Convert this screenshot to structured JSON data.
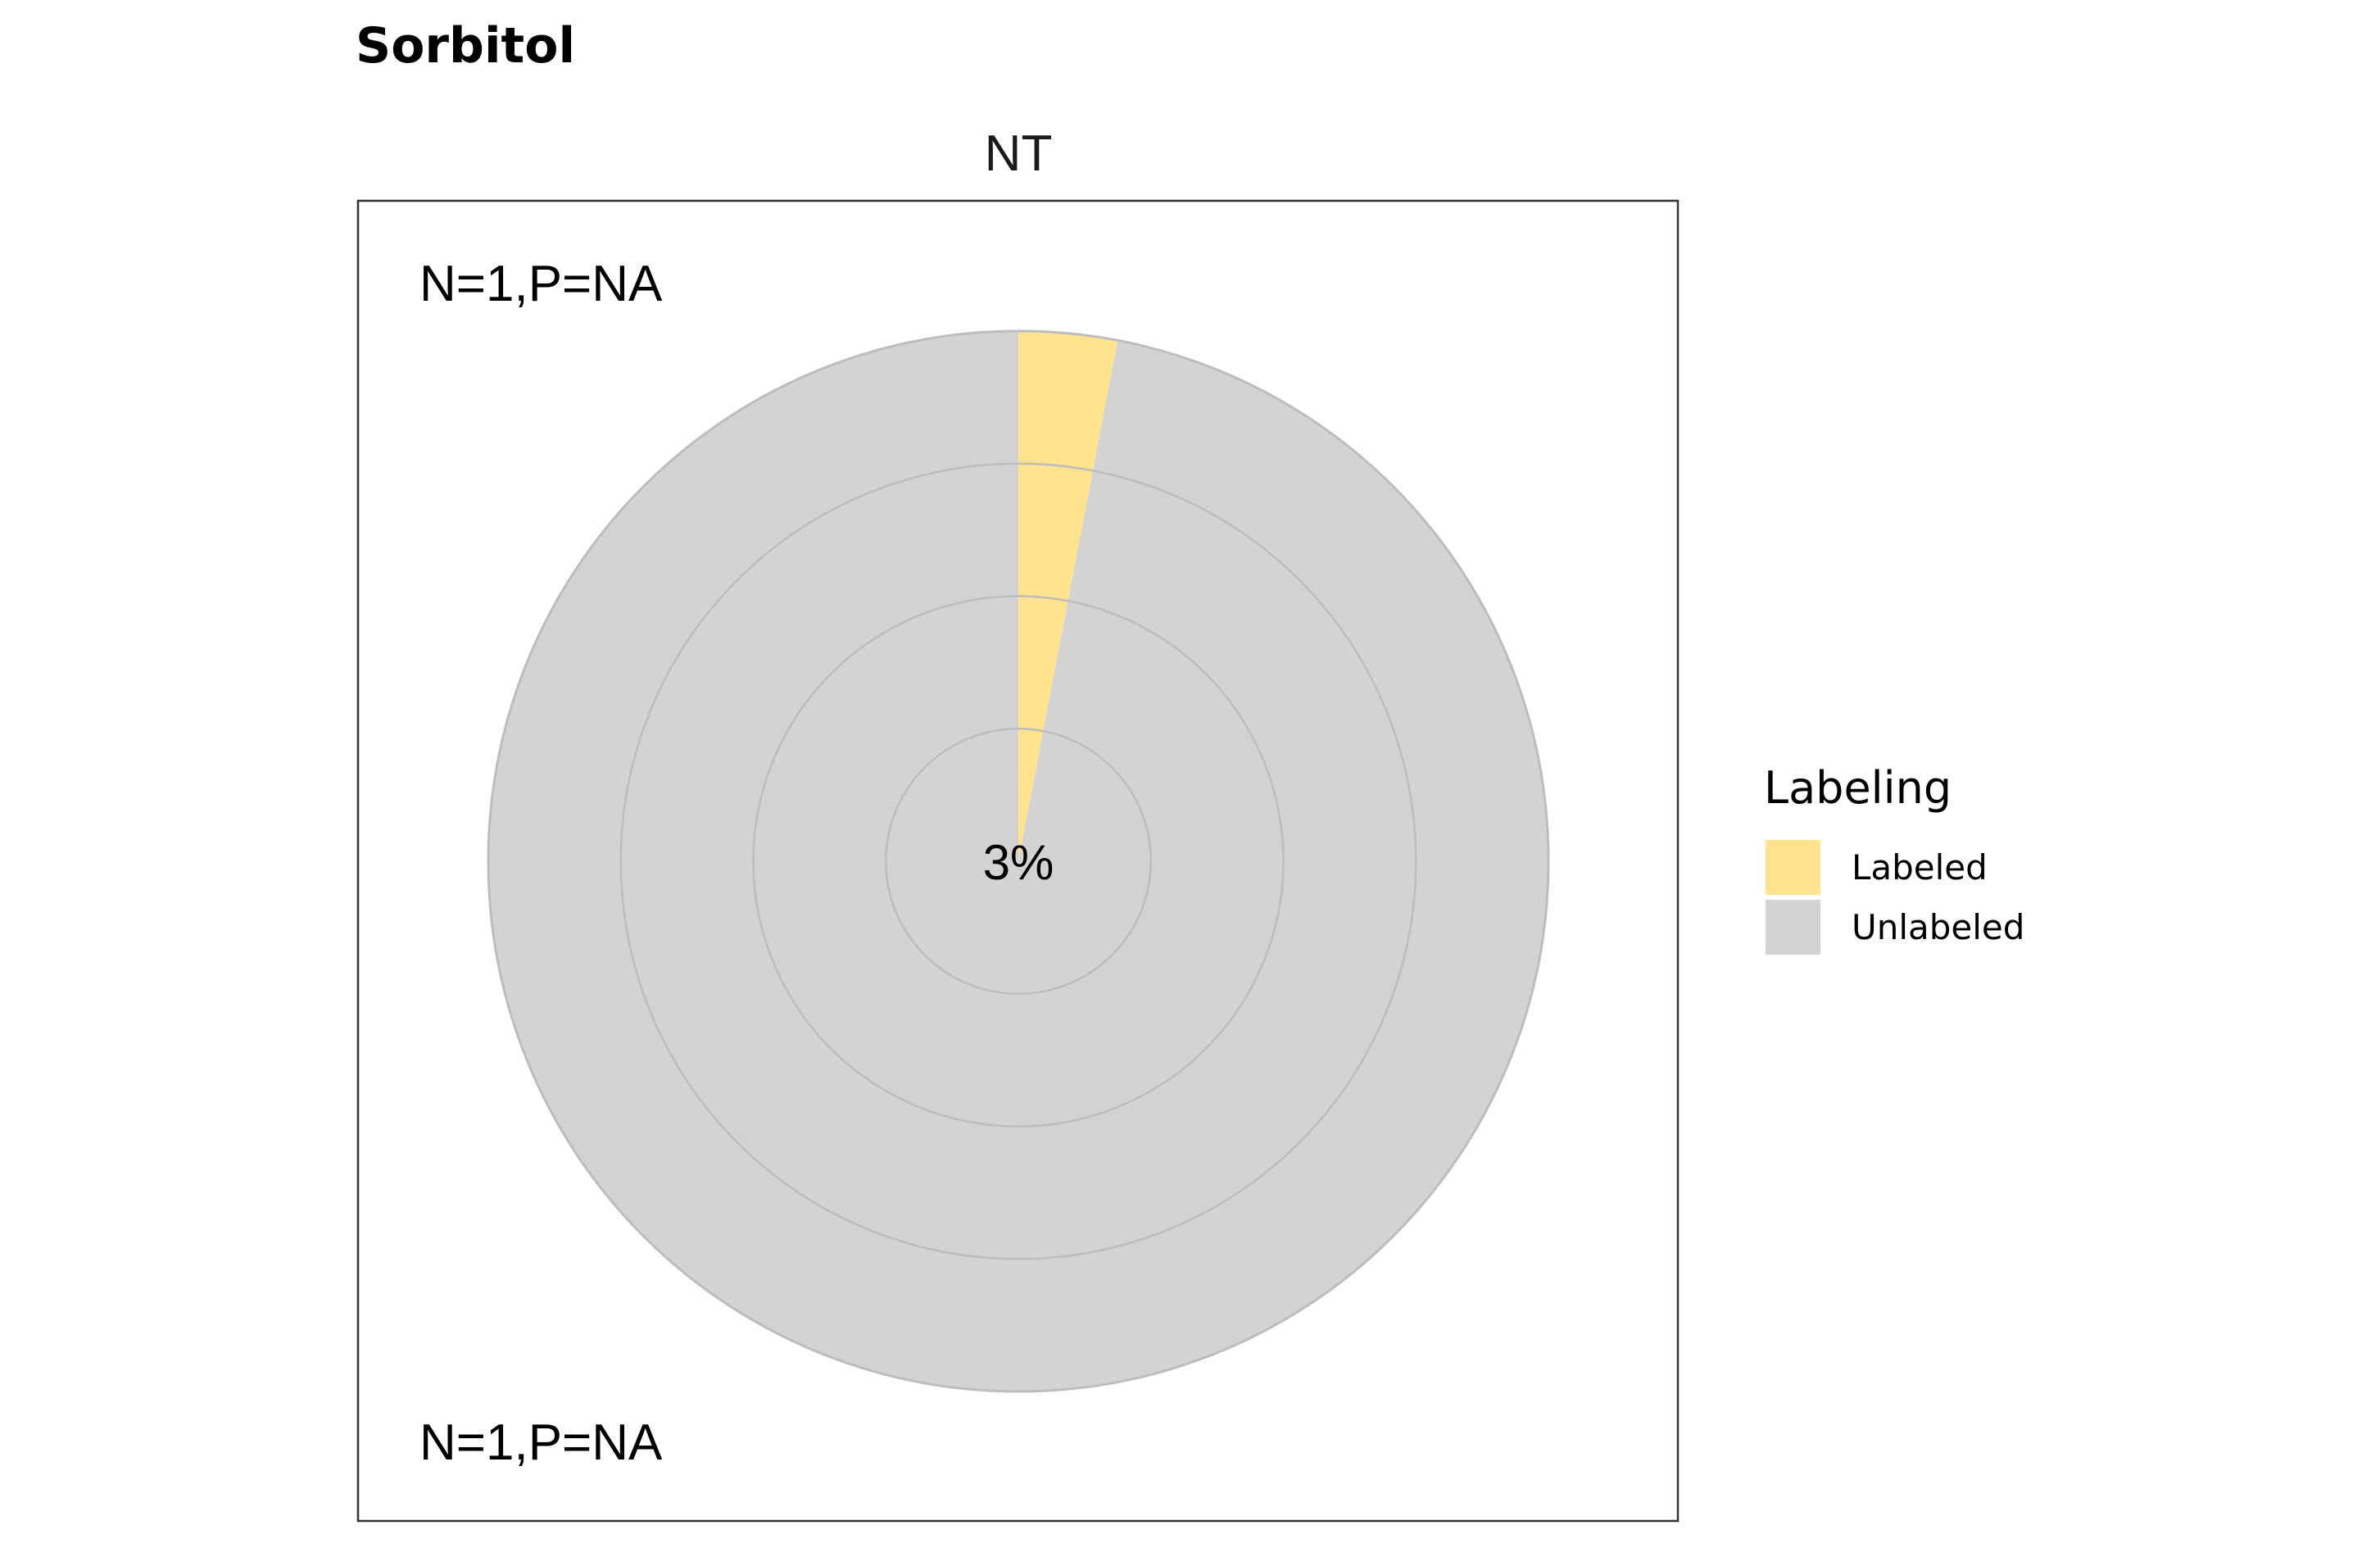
{
  "chart_data": {
    "type": "pie",
    "title": "Sorbitol",
    "facet": "NT",
    "annotation_top": "N=1,P=NA",
    "annotation_bottom": "N=1,P=NA",
    "center_label": "3%",
    "rings": 4,
    "slices": [
      {
        "name": "Labeled",
        "value": 3,
        "color": "#FFE38E"
      },
      {
        "name": "Unlabeled",
        "value": 97,
        "color": "#D3D3D3"
      }
    ],
    "legend": {
      "title": "Labeling",
      "position": "right",
      "entries": [
        {
          "label": "Labeled",
          "color": "#FFE38E"
        },
        {
          "label": "Unlabeled",
          "color": "#D3D3D3"
        }
      ]
    }
  }
}
